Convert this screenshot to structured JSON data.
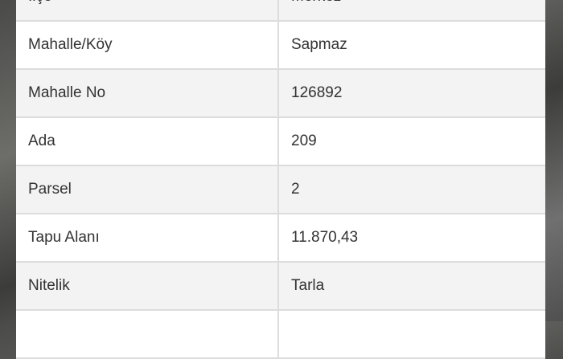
{
  "rows": [
    {
      "label": "İlçe",
      "value": "Merkez"
    },
    {
      "label": "Mahalle/Köy",
      "value": "Sapmaz"
    },
    {
      "label": "Mahalle No",
      "value": "126892"
    },
    {
      "label": "Ada",
      "value": "209"
    },
    {
      "label": "Parsel",
      "value": "2"
    },
    {
      "label": "Tapu Alanı",
      "value": "11.870,43"
    },
    {
      "label": "Nitelik",
      "value": "Tarla"
    },
    {
      "label": "",
      "value": ""
    }
  ]
}
